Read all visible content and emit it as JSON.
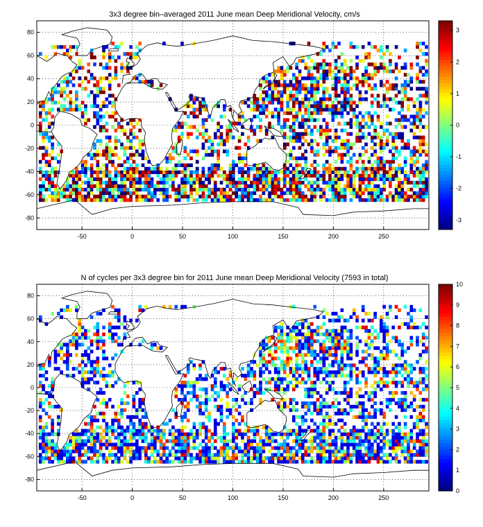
{
  "chart_data": [
    {
      "type": "heatmap",
      "title": "3x3 degree bin–averaged 2011 June mean Deep Meridional Velocity, cm/s",
      "x_ticks": [
        -50,
        0,
        50,
        100,
        150,
        200,
        250
      ],
      "y_ticks": [
        80,
        60,
        40,
        20,
        0,
        -20,
        -40,
        -60,
        -80
      ],
      "xlim": [
        -95,
        295
      ],
      "ylim": [
        -90,
        90
      ],
      "bin_size_deg": 3,
      "colorbar": {
        "colormap": "jet",
        "range": [
          -3.3,
          3.3
        ],
        "ticks": [
          3,
          2,
          1,
          0,
          -1,
          -2,
          -3
        ]
      },
      "grid": "dotted"
    },
    {
      "type": "heatmap",
      "title": "N of cycles per 3x3 degree bin for 2011 June mean Deep Meridional Velocity (7593 in total)",
      "x_ticks": [
        -50,
        0,
        50,
        100,
        150,
        200,
        250
      ],
      "y_ticks": [
        80,
        60,
        40,
        20,
        0,
        -20,
        -40,
        -60,
        -80
      ],
      "xlim": [
        -95,
        295
      ],
      "ylim": [
        -90,
        90
      ],
      "bin_size_deg": 3,
      "colorbar": {
        "colormap": "jet",
        "range": [
          0,
          10
        ],
        "ticks": [
          10,
          9,
          8,
          7,
          6,
          5,
          4,
          3,
          2,
          1,
          0
        ]
      },
      "grid": "dotted"
    }
  ]
}
